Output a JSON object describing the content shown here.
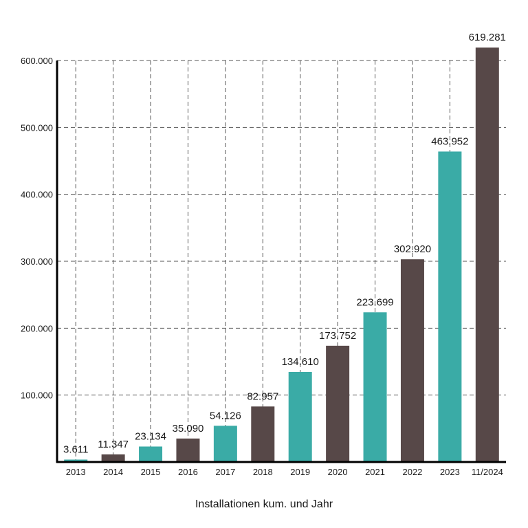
{
  "chart_data": {
    "type": "bar",
    "title": "",
    "xlabel": "Installationen kum. und Jahr",
    "ylabel": "",
    "categories": [
      "2013",
      "2014",
      "2015",
      "2016",
      "2017",
      "2018",
      "2019",
      "2020",
      "2021",
      "2022",
      "2023",
      "11/2024"
    ],
    "values": [
      3611,
      11347,
      23134,
      35090,
      54126,
      82957,
      134610,
      173752,
      223699,
      302920,
      463952,
      619281
    ],
    "value_labels": [
      "3.611",
      "11.347",
      "23.134",
      "35.090",
      "54.126",
      "82.957",
      "134.610",
      "173.752",
      "223.699",
      "302.920",
      "463.952",
      "619.281"
    ],
    "bar_colors": [
      "#3aaba6",
      "#574848",
      "#3aaba6",
      "#574848",
      "#3aaba6",
      "#574848",
      "#3aaba6",
      "#574848",
      "#3aaba6",
      "#574848",
      "#3aaba6",
      "#574848"
    ],
    "ylim": [
      0,
      600000
    ],
    "yticks": [
      100000,
      200000,
      300000,
      400000,
      500000,
      600000
    ],
    "ytick_labels": [
      "100.000",
      "200.000",
      "300.000",
      "400.000",
      "500.000",
      "600.000"
    ],
    "grid": true,
    "grid_style": "dashed",
    "legend": "none"
  }
}
